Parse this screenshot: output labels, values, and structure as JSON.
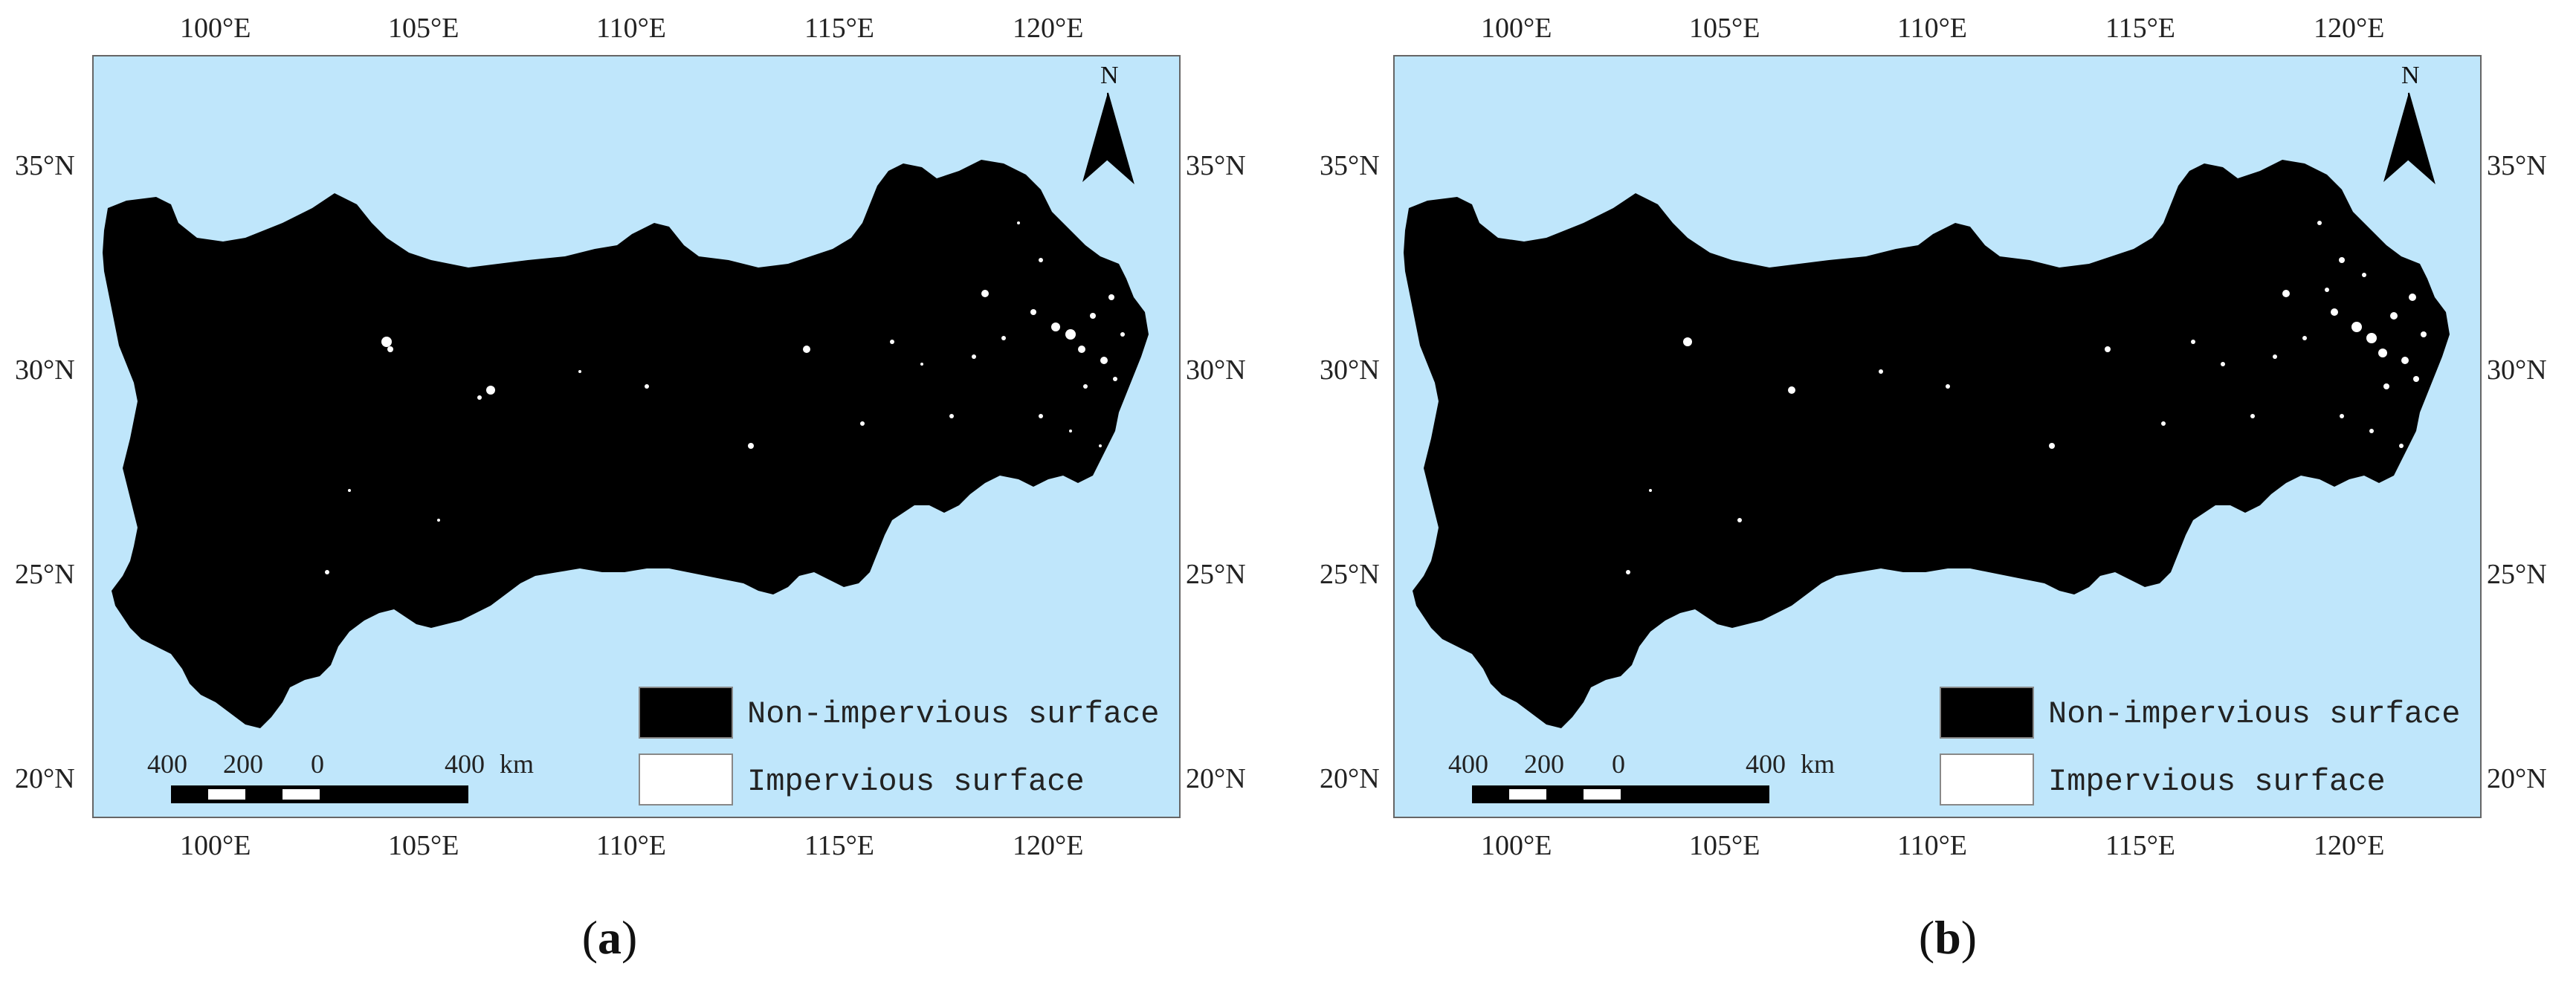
{
  "panels": [
    {
      "id": "a",
      "label_open": "(",
      "label_letter": "a",
      "label_close": ")"
    },
    {
      "id": "b",
      "label_open": "(",
      "label_letter": "b",
      "label_close": ")"
    }
  ],
  "axes": {
    "lon_labels": [
      "100°E",
      "105°E",
      "110°E",
      "115°E",
      "120°E"
    ],
    "lat_labels_left": [
      "35°N",
      "30°N",
      "25°N",
      "20°N"
    ],
    "lat_labels_right": [
      "35°N",
      "30°N",
      "25°N",
      "20°N"
    ]
  },
  "legend": {
    "items": [
      {
        "label": "Non-impervious surface",
        "color": "#000000"
      },
      {
        "label": "Impervious surface",
        "color": "#ffffff"
      }
    ]
  },
  "scale_bar": {
    "ticks": [
      "400",
      "200",
      "0",
      "400"
    ],
    "unit": "km"
  },
  "north_arrow": {
    "label": "N"
  },
  "colors": {
    "sea": "#bfe6fb",
    "land": "#000000",
    "urban": "#ffffff"
  }
}
